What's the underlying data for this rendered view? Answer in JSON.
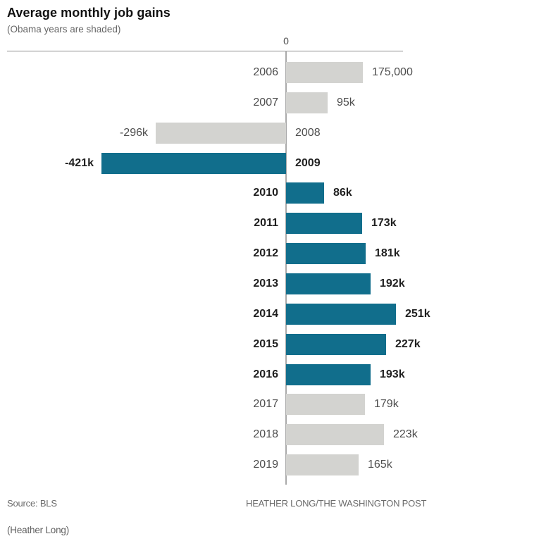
{
  "header": {
    "title": "Average monthly job gains",
    "subtitle": "(Obama years are shaded)"
  },
  "axis": {
    "zero_label": "0"
  },
  "footer": {
    "source": "Source: BLS",
    "credit": "HEATHER LONG/THE WASHINGTON POST",
    "caption": "(Heather Long)"
  },
  "colors": {
    "obama_bar": "#116e8c",
    "other_bar": "#d3d3d0"
  },
  "chart_data": {
    "type": "bar",
    "orientation": "horizontal",
    "title": "Average monthly job gains",
    "subtitle": "(Obama years are shaded)",
    "categories": [
      "2006",
      "2007",
      "2008",
      "2009",
      "2010",
      "2011",
      "2012",
      "2013",
      "2014",
      "2015",
      "2016",
      "2017",
      "2018",
      "2019"
    ],
    "values_thousands": [
      175,
      95,
      -296,
      -421,
      86,
      173,
      181,
      192,
      251,
      227,
      193,
      179,
      223,
      165
    ],
    "value_labels": [
      "175,000",
      "95k",
      "-296k",
      "-421k",
      "86k",
      "173k",
      "181k",
      "192k",
      "251k",
      "227k",
      "193k",
      "179k",
      "223k",
      "165k"
    ],
    "obama_years": [
      "2009",
      "2010",
      "2011",
      "2012",
      "2013",
      "2014",
      "2015",
      "2016"
    ],
    "xlim_thousands": [
      -421,
      251
    ],
    "xlabel": "",
    "ylabel": "",
    "legend": "none",
    "gridlines": false
  }
}
